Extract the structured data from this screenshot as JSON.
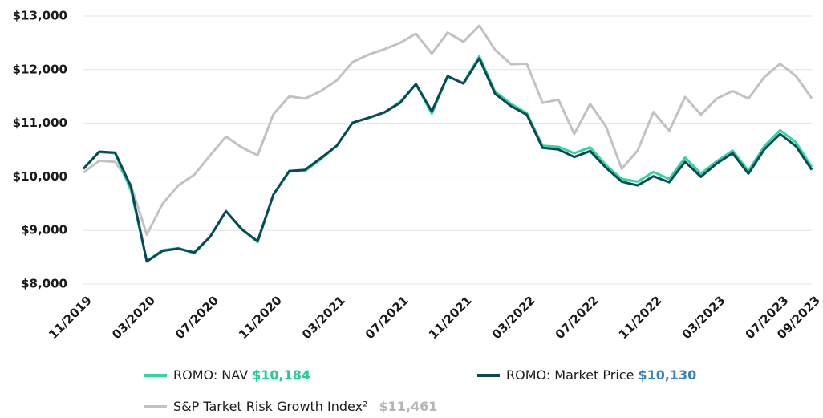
{
  "chart_data": {
    "type": "line",
    "categories": [
      "11/2019",
      null,
      null,
      null,
      "03/2020",
      null,
      null,
      null,
      "07/2020",
      null,
      null,
      null,
      "11/2020",
      null,
      null,
      null,
      "03/2021",
      null,
      null,
      null,
      "07/2021",
      null,
      null,
      null,
      "11/2021",
      null,
      null,
      null,
      "03/2022",
      null,
      null,
      null,
      "07/2022",
      null,
      null,
      null,
      "11/2022",
      null,
      null,
      null,
      "03/2023",
      null,
      null,
      null,
      "07/2023",
      null,
      "09/2023"
    ],
    "series": [
      {
        "name": "S&P Tarket Risk Growth Index²",
        "color": "#c2c2c6",
        "label_color": "#b5b5ba",
        "end_label": "$11,461",
        "values": [
          10080,
          10300,
          10280,
          9850,
          8920,
          9500,
          9840,
          10040,
          10400,
          10750,
          10550,
          10400,
          11170,
          11500,
          11460,
          11600,
          11800,
          12140,
          12280,
          12380,
          12500,
          12670,
          12300,
          12690,
          12520,
          12820,
          12370,
          12100,
          12110,
          11380,
          11440,
          10800,
          11360,
          10940,
          10150,
          10490,
          11210,
          10860,
          11490,
          11160,
          11460,
          11600,
          11460,
          11860,
          12110,
          11880,
          11461
        ]
      },
      {
        "name": "ROMO: NAV",
        "color": "#2ed8a0",
        "label_color": "#1fcf8f",
        "end_label": "$10,184",
        "values": [
          10150,
          10460,
          10440,
          9750,
          8430,
          8630,
          8670,
          8570,
          8880,
          9360,
          9030,
          8780,
          9670,
          10100,
          10110,
          10330,
          10580,
          11010,
          11100,
          11200,
          11400,
          11730,
          11180,
          11870,
          11750,
          12250,
          11590,
          11360,
          11190,
          10580,
          10560,
          10440,
          10550,
          10220,
          9960,
          9910,
          10090,
          9960,
          10360,
          10060,
          10290,
          10490,
          10110,
          10570,
          10870,
          10640,
          10184
        ]
      },
      {
        "name": "ROMO: Market Price",
        "color": "#0b4a55",
        "label_color": "#3a7fc1",
        "end_label": "$10,130",
        "values": [
          10150,
          10470,
          10450,
          9820,
          8420,
          8620,
          8660,
          8590,
          8880,
          9360,
          9020,
          8800,
          9670,
          10110,
          10130,
          10350,
          10580,
          11010,
          11100,
          11200,
          11380,
          11730,
          11220,
          11880,
          11740,
          12210,
          11550,
          11320,
          11160,
          10540,
          10510,
          10370,
          10480,
          10170,
          9910,
          9840,
          10010,
          9900,
          10280,
          10000,
          10250,
          10440,
          10060,
          10510,
          10800,
          10570,
          10130
        ]
      }
    ],
    "ylim": [
      8000,
      13000
    ],
    "yticks": [
      {
        "value": 8000,
        "label": "$8,000"
      },
      {
        "value": 9000,
        "label": "$9,000"
      },
      {
        "value": 10000,
        "label": "$10,000"
      },
      {
        "value": 11000,
        "label": "$11,000"
      },
      {
        "value": 12000,
        "label": "$12,000"
      },
      {
        "value": 13000,
        "label": "$13,000"
      }
    ],
    "grid": true
  }
}
